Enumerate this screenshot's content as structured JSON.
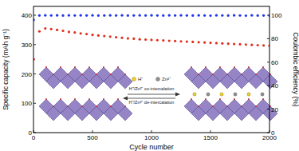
{
  "chart_data": {
    "type": "line",
    "x_label": "Cycle number",
    "y_label": "Specific capacity (mAh g⁻¹)",
    "y2_label": "Coulombic efficiency (%)",
    "annotations": [
      "H⁺",
      "Zn²⁺",
      "H⁺/Zn²⁺ co-intercalation",
      "H⁺/Zn²⁺ de-intercalation"
    ],
    "x": [
      1,
      50,
      100,
      150,
      200,
      250,
      300,
      350,
      400,
      450,
      500,
      550,
      600,
      650,
      700,
      750,
      800,
      850,
      900,
      950,
      1000,
      1050,
      1100,
      1150,
      1200,
      1250,
      1300,
      1350,
      1400,
      1450,
      1500,
      1550,
      1600,
      1650,
      1700,
      1750,
      1800,
      1850,
      1900,
      1950,
      2000
    ],
    "xlim": [
      0,
      2000
    ],
    "xticks": [
      0,
      500,
      1000,
      1500,
      2000
    ],
    "ylim": [
      0,
      430
    ],
    "yticks": [
      0,
      100,
      200,
      300,
      400
    ],
    "y2lim": [
      0,
      107.5
    ],
    "y2ticks": [
      0,
      20,
      40,
      60,
      80,
      100
    ],
    "series": [
      {
        "name": "Specific capacity",
        "color": "#e0301e",
        "marker": "circle",
        "values": [
          250,
          345,
          355,
          353,
          350,
          347,
          343,
          341,
          338,
          336,
          333,
          331,
          329,
          327,
          325,
          323,
          321,
          320,
          318,
          317,
          316,
          315,
          314,
          313,
          312,
          311,
          310,
          309,
          308,
          307,
          306,
          305,
          304,
          303,
          302,
          301,
          300,
          299,
          298,
          297,
          296
        ]
      },
      {
        "name": "Coulombic efficiency",
        "color": "#2038e8",
        "marker": "circle",
        "axis": "y2",
        "values": [
          96,
          99.8,
          99.9,
          99.8,
          99.9,
          99.7,
          99.9,
          99.8,
          99.9,
          99.8,
          99.9,
          99.7,
          99.8,
          99.9,
          99.8,
          99.9,
          99.7,
          99.8,
          99.9,
          99.8,
          99.9,
          99.8,
          99.7,
          99.9,
          99.8,
          99.9,
          99.8,
          99.7,
          99.9,
          99.8,
          99.6,
          99.9,
          99.8,
          99.7,
          99.9,
          99.8,
          99.6,
          99.9,
          99.7,
          99.8,
          99.6
        ]
      }
    ]
  }
}
